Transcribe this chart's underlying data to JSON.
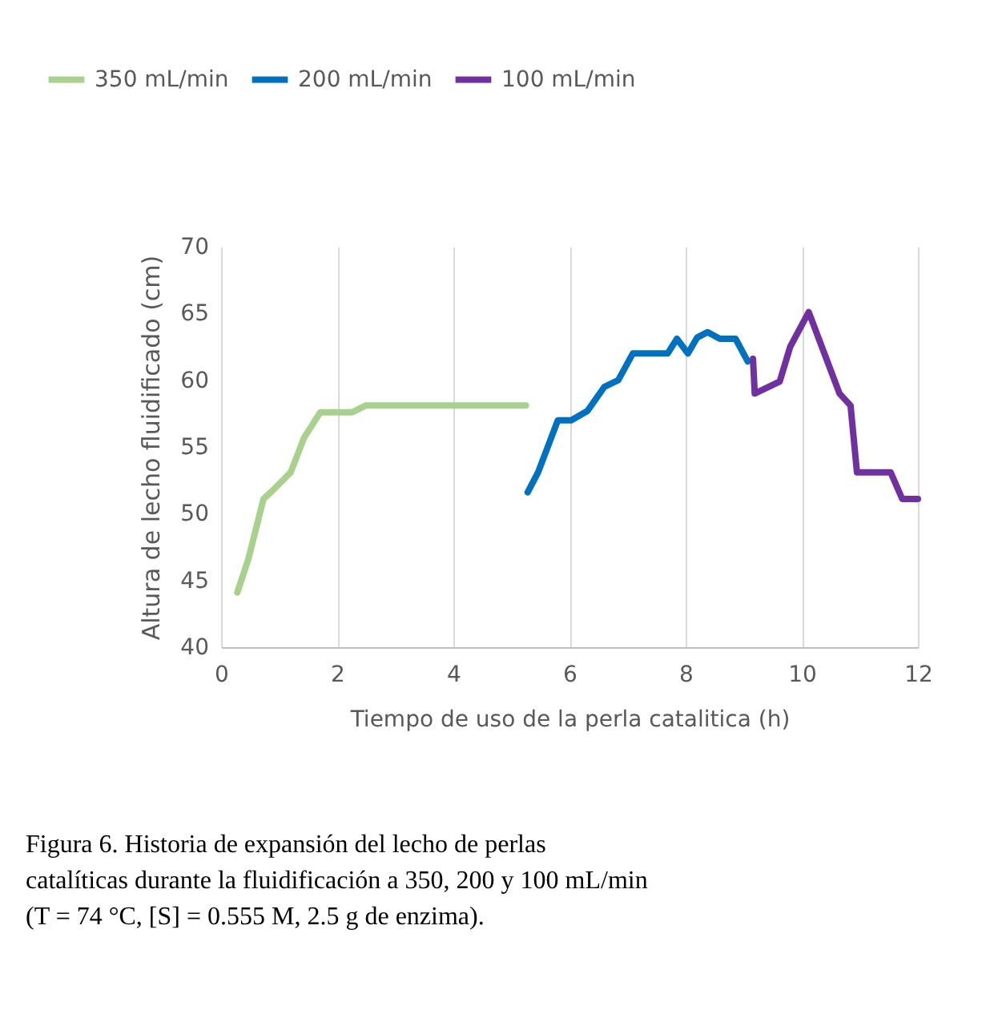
{
  "chart_data": {
    "type": "line",
    "xlabel": "Tiempo de uso de la perla catalitica (h)",
    "ylabel": "Altura de lecho fluidificado (cm)",
    "xlim": [
      0,
      12
    ],
    "xticks": [
      0,
      2,
      4,
      6,
      8,
      10,
      12
    ],
    "ylim": [
      40,
      70
    ],
    "yticks": [
      40,
      45,
      50,
      55,
      60,
      65,
      70
    ],
    "grid": "x",
    "legend": "top",
    "marker": "none",
    "line_style": "solid",
    "annotations": [
      "Figura 6. Historia de expansión del lecho de perlas catalíticas durante la fluidificación a 350, 200 y 100 mL/min (T = 74 °C, [S] = 0.555 M, 2.5 g de enzima)."
    ],
    "series": [
      {
        "name": "350 mL/min",
        "color": "#a9d18e",
        "x": [
          0.28,
          0.47,
          0.73,
          0.88,
          1.2,
          1.43,
          1.71,
          2.26,
          2.49,
          5.25
        ],
        "values": [
          44.1,
          46.6,
          51.1,
          51.7,
          53.1,
          55.7,
          57.6,
          57.6,
          58.1,
          58.1
        ]
      },
      {
        "name": "200 mL/min",
        "color": "#0070c0",
        "x": [
          5.28,
          5.46,
          5.8,
          6.03,
          6.31,
          6.6,
          6.84,
          7.09,
          7.69,
          7.85,
          8.04,
          8.2,
          8.38,
          8.59,
          8.86,
          9.07
        ],
        "values": [
          51.6,
          53.1,
          57.0,
          57.0,
          57.7,
          59.5,
          60.0,
          62.0,
          62.0,
          63.1,
          62.0,
          63.2,
          63.6,
          63.1,
          63.1,
          61.4
        ]
      },
      {
        "name": "100 mL/min",
        "color": "#7030a0",
        "x": [
          9.16,
          9.19,
          9.62,
          9.8,
          10.12,
          10.65,
          10.84,
          10.95,
          11.53,
          11.73,
          12.0
        ],
        "values": [
          61.6,
          59.0,
          59.9,
          62.5,
          65.1,
          59.0,
          58.1,
          53.1,
          53.1,
          51.1,
          51.1
        ]
      }
    ]
  }
}
